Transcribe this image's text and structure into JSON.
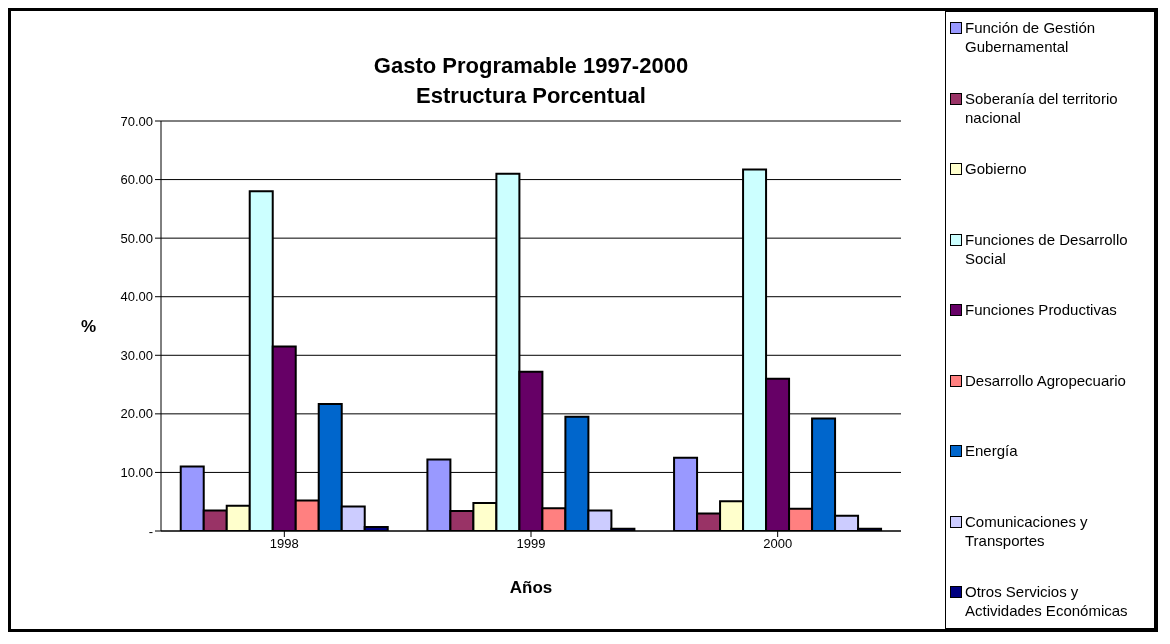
{
  "chart_data": {
    "type": "bar",
    "title": "Gasto Programable 1997-2000",
    "subtitle": "Estructura Porcentual",
    "xlabel": "Años",
    "ylabel": "%",
    "categories": [
      "1998",
      "1999",
      "2000"
    ],
    "series": [
      {
        "name": "Función de Gestión Gubernamental",
        "color": "#9999ff",
        "values": [
          11,
          12.2,
          12.5
        ]
      },
      {
        "name": "Soberanía del territorio nacional",
        "color": "#993366",
        "values": [
          3.5,
          3.4,
          3
        ]
      },
      {
        "name": "Gobierno",
        "color": "#ffffcc",
        "values": [
          4.3,
          4.8,
          5.1
        ]
      },
      {
        "name": "Funciones de Desarrollo Social",
        "color": "#ccffff",
        "values": [
          58,
          61,
          61.7
        ]
      },
      {
        "name": "Funciones Productivas",
        "color": "#660066",
        "values": [
          31.5,
          27.2,
          26
        ]
      },
      {
        "name": "Desarrollo Agropecuario",
        "color": "#ff8080",
        "values": [
          5.2,
          3.9,
          3.8
        ]
      },
      {
        "name": "Energía",
        "color": "#0066cc",
        "values": [
          21.7,
          19.5,
          19.2
        ]
      },
      {
        "name": "Comunicaciones y Transportes",
        "color": "#ccccff",
        "values": [
          4.2,
          3.5,
          2.6
        ]
      },
      {
        "name": "Otros Servicios y Actividades Económicas",
        "color": "#000080",
        "values": [
          0.7,
          0.4,
          0.4
        ]
      }
    ],
    "ylim": [
      0,
      70
    ],
    "yticks": [
      {
        "value": 0,
        "label": "-"
      },
      {
        "value": 10,
        "label": "10.00"
      },
      {
        "value": 20,
        "label": "20.00"
      },
      {
        "value": 30,
        "label": "30.00"
      },
      {
        "value": 40,
        "label": "40.00"
      },
      {
        "value": 50,
        "label": "50.00"
      },
      {
        "value": 60,
        "label": "60.00"
      },
      {
        "value": 70,
        "label": "70.00"
      }
    ],
    "grid": "y",
    "legend": "right"
  }
}
